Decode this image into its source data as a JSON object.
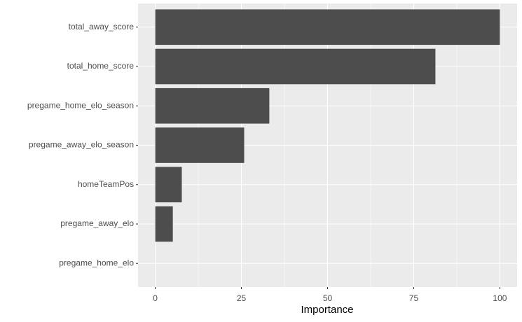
{
  "chart_data": {
    "type": "barh",
    "xlabel": "Importance",
    "categories": [
      "total_away_score",
      "total_home_score",
      "pregame_home_elo_season",
      "pregame_away_elo_season",
      "homeTeamPos",
      "pregame_away_elo",
      "pregame_home_elo"
    ],
    "values": [
      100,
      81.3,
      33.1,
      25.8,
      7.7,
      5.1,
      0
    ],
    "color": "#4d4d4d",
    "xlim": [
      -5,
      105
    ],
    "xticks": [
      0,
      25,
      50,
      75,
      100
    ],
    "grid": true
  }
}
